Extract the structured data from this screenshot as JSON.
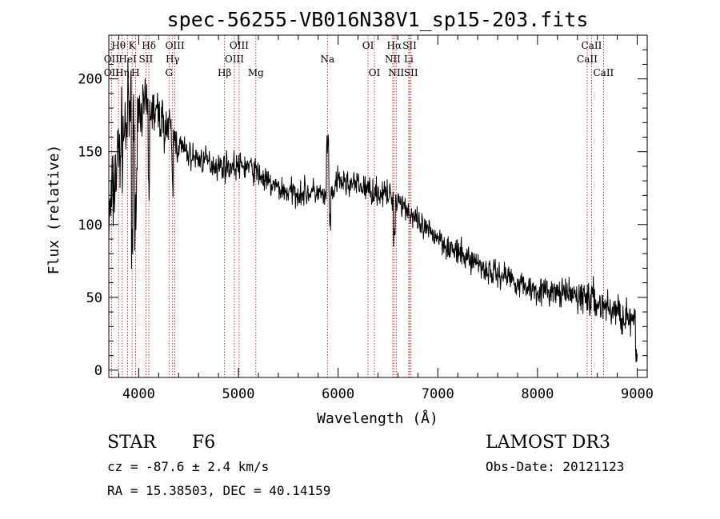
{
  "chart_data": {
    "type": "line",
    "title": "spec-56255-VB016N38V1_sp15-203.fits",
    "xlabel": "Wavelength (Å)",
    "ylabel": "Flux (relative)",
    "xlim": [
      3700,
      9100
    ],
    "ylim": [
      -5,
      230
    ],
    "xticks": [
      4000,
      5000,
      6000,
      7000,
      8000,
      9000
    ],
    "yticks": [
      0,
      50,
      100,
      150,
      200
    ],
    "spectrum_shape": {
      "x": [
        3700,
        3800,
        3900,
        4000,
        4100,
        4200,
        4300,
        4400,
        4500,
        4600,
        4700,
        4800,
        4900,
        5000,
        5100,
        5200,
        5300,
        5400,
        5500,
        5600,
        5700,
        5800,
        5900,
        6000,
        6100,
        6200,
        6300,
        6400,
        6500,
        6600,
        6700,
        6800,
        6900,
        7000,
        7100,
        7200,
        7300,
        7400,
        7500,
        7600,
        7700,
        7800,
        7900,
        8000,
        8100,
        8200,
        8300,
        8400,
        8500,
        8600,
        8700,
        8800,
        8900,
        9000
      ],
      "y": [
        100,
        150,
        175,
        180,
        180,
        175,
        165,
        155,
        148,
        145,
        143,
        140,
        140,
        140,
        140,
        135,
        128,
        125,
        122,
        122,
        122,
        122,
        115,
        130,
        128,
        127,
        124,
        122,
        120,
        118,
        110,
        100,
        95,
        92,
        85,
        80,
        77,
        74,
        68,
        66,
        65,
        60,
        57,
        55,
        54,
        53,
        52,
        51,
        50,
        46,
        43,
        40,
        36,
        30
      ],
      "noise": 8,
      "seed": 7
    },
    "spectral_lines": [
      {
        "label": "Hθ",
        "x": 3798,
        "row": 1
      },
      {
        "label": "K",
        "x": 3934,
        "row": 1
      },
      {
        "label": "Hδ",
        "x": 4102,
        "row": 1
      },
      {
        "label": "OIII",
        "x": 4363,
        "row": 1
      },
      {
        "label": "OIII",
        "x": 5007,
        "row": 1
      },
      {
        "label": "OI",
        "x": 6300,
        "row": 1
      },
      {
        "label": "Hα",
        "x": 6563,
        "row": 1
      },
      {
        "label": "SII",
        "x": 6717,
        "row": 1
      },
      {
        "label": "CaII",
        "x": 8542,
        "row": 1
      },
      {
        "label": "OII",
        "x": 3727,
        "row": 2
      },
      {
        "label": "HeI",
        "x": 3889,
        "row": 2
      },
      {
        "label": "SII",
        "x": 4072,
        "row": 2
      },
      {
        "label": "Hγ",
        "x": 4340,
        "row": 2
      },
      {
        "label": "OIII",
        "x": 4959,
        "row": 2
      },
      {
        "label": "Na",
        "x": 5893,
        "row": 2
      },
      {
        "label": "NII",
        "x": 6548,
        "row": 2
      },
      {
        "label": "Li",
        "x": 6708,
        "row": 2
      },
      {
        "label": "CaII",
        "x": 8498,
        "row": 2
      },
      {
        "label": "OII",
        "x": 3727,
        "row": 3
      },
      {
        "label": "Hη",
        "x": 3835,
        "row": 3
      },
      {
        "label": "H",
        "x": 3968,
        "row": 3
      },
      {
        "label": "G",
        "x": 4304,
        "row": 3
      },
      {
        "label": "Hβ",
        "x": 4861,
        "row": 3
      },
      {
        "label": "Mg",
        "x": 5175,
        "row": 3
      },
      {
        "label": "OI",
        "x": 6364,
        "row": 3
      },
      {
        "label": "NII",
        "x": 6583,
        "row": 3
      },
      {
        "label": "SII",
        "x": 6731,
        "row": 3
      },
      {
        "label": "CaII",
        "x": 8662,
        "row": 3
      }
    ]
  },
  "info": {
    "class": "STAR",
    "subclass": "F6",
    "cz": "cz = -87.6 ± 2.4 km/s",
    "coords": "RA =  15.38503, DEC =  40.14159",
    "survey": "LAMOST DR3",
    "obs_date": "Obs-Date: 20121123"
  }
}
